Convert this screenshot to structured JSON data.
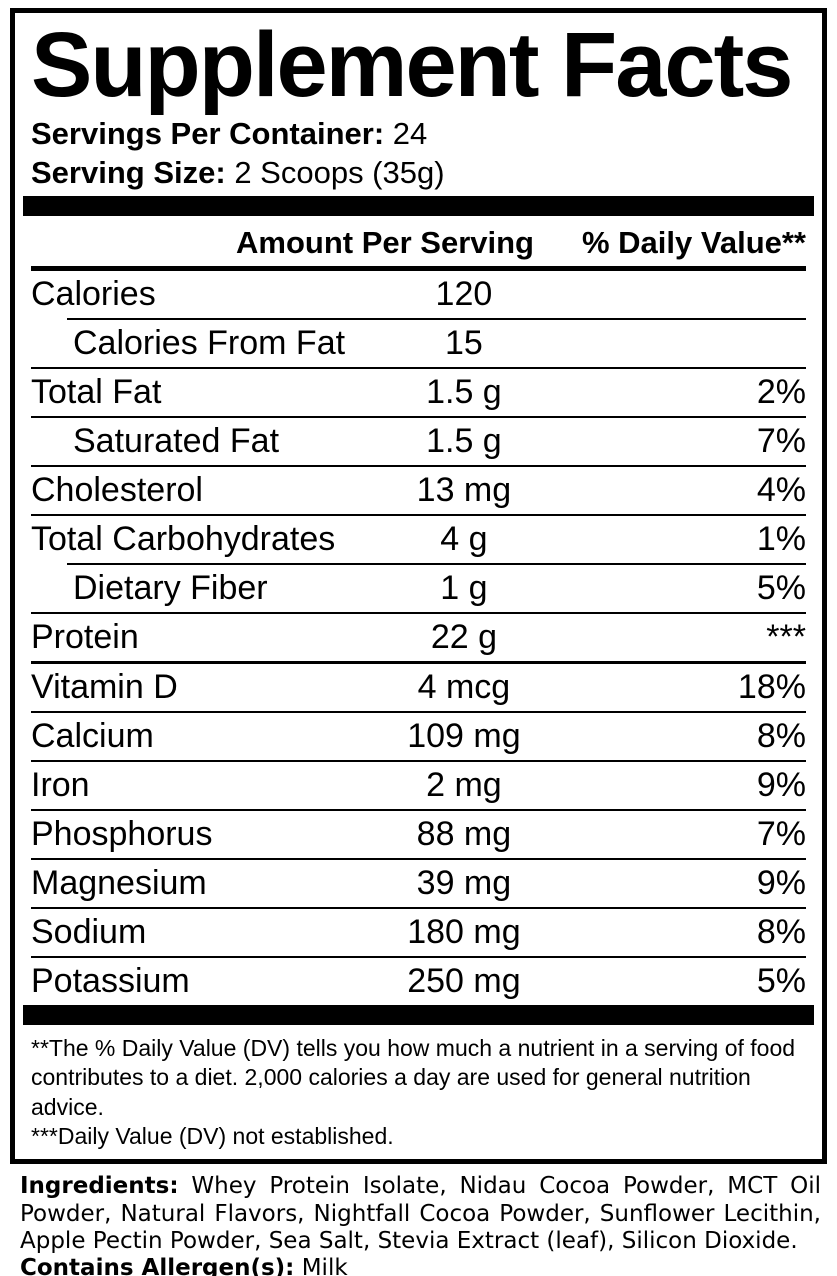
{
  "panel": {
    "title": "Supplement Facts",
    "servings_per_container": {
      "label": "Servings Per Container:",
      "value": "24"
    },
    "serving_size": {
      "label": "Serving Size:",
      "value": "2 Scoops (35g)"
    },
    "columns": {
      "amount": "Amount Per Serving",
      "dv": "% Daily Value**"
    },
    "rows": [
      {
        "name": "Calories",
        "amount": "120",
        "dv": "",
        "indent": false,
        "separator_above": "none"
      },
      {
        "name": "Calories From Fat",
        "amount": "15",
        "dv": "",
        "indent": true,
        "separator_above": "indented"
      },
      {
        "name": "Total Fat",
        "amount": "1.5 g",
        "dv": "2%",
        "indent": false,
        "separator_above": "full"
      },
      {
        "name": "Saturated Fat",
        "amount": "1.5 g",
        "dv": "7%",
        "indent": true,
        "separator_above": "full"
      },
      {
        "name": "Cholesterol",
        "amount": "13 mg",
        "dv": "4%",
        "indent": false,
        "separator_above": "full"
      },
      {
        "name": "Total Carbohydrates",
        "amount": "4 g",
        "dv": "1%",
        "indent": false,
        "separator_above": "full"
      },
      {
        "name": "Dietary Fiber",
        "amount": "1 g",
        "dv": "5%",
        "indent": true,
        "separator_above": "indented"
      },
      {
        "name": "Protein",
        "amount": "22 g",
        "dv": "***",
        "indent": false,
        "separator_above": "full"
      },
      {
        "name": "Vitamin D",
        "amount": "4 mcg",
        "dv": "18%",
        "indent": false,
        "separator_above": "thick"
      },
      {
        "name": "Calcium",
        "amount": "109 mg",
        "dv": "8%",
        "indent": false,
        "separator_above": "full"
      },
      {
        "name": "Iron",
        "amount": "2 mg",
        "dv": "9%",
        "indent": false,
        "separator_above": "full"
      },
      {
        "name": "Phosphorus",
        "amount": "88 mg",
        "dv": "7%",
        "indent": false,
        "separator_above": "full"
      },
      {
        "name": "Magnesium",
        "amount": "39 mg",
        "dv": "9%",
        "indent": false,
        "separator_above": "full"
      },
      {
        "name": "Sodium",
        "amount": "180 mg",
        "dv": "8%",
        "indent": false,
        "separator_above": "full"
      },
      {
        "name": "Potassium",
        "amount": "250 mg",
        "dv": "5%",
        "indent": false,
        "separator_above": "full"
      }
    ],
    "footnotes": {
      "dv_note": "**The % Daily Value (DV) tells you how much a nutrient in a serving of food contributes to a diet. 2,000 calories a day are used for general nutrition advice.",
      "not_established_note": "***Daily Value (DV) not established."
    }
  },
  "ingredients": {
    "label": "Ingredients:",
    "text": "Whey Protein Isolate, Nidau Cocoa Powder, MCT Oil Powder, Natural Flavors, Nightfall Cocoa Powder, Sunflower Lecithin, Apple Pectin Powder, Sea Salt, Stevia Extract (leaf), Silicon Dioxide."
  },
  "allergens": {
    "label": "Contains Allergen(s):",
    "value": "Milk"
  },
  "colors": {
    "ink": "#000000",
    "background": "#ffffff"
  }
}
